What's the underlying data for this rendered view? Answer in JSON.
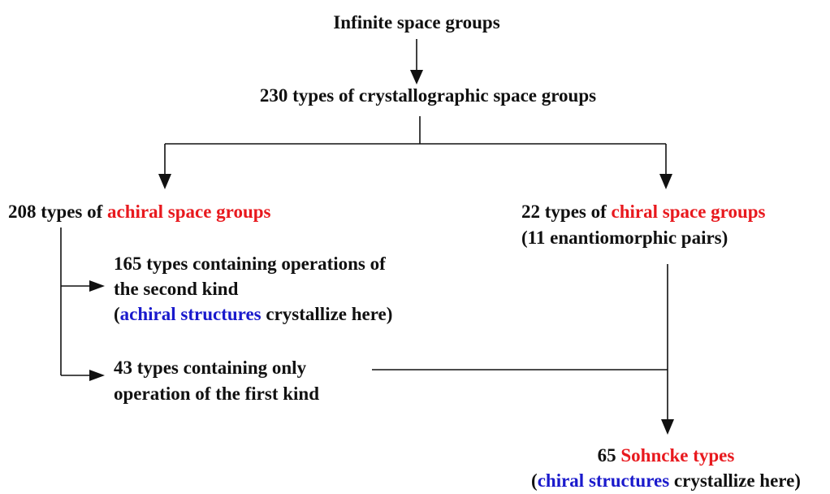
{
  "nodes": [
    {
      "lines": [
        [
          {
            "text": "Infinite space groups"
          }
        ]
      ]
    },
    {
      "lines": [
        [
          {
            "text": "230 types of crystallographic space groups"
          }
        ]
      ]
    },
    {
      "lines": [
        [
          {
            "text": "208 types of "
          },
          {
            "text": "achiral space groups",
            "color": "#e8191e"
          }
        ]
      ]
    },
    {
      "lines": [
        [
          {
            "text": "22 types of "
          },
          {
            "text": "chiral space groups",
            "color": "#e8191e"
          }
        ],
        [
          {
            "text": "(11 enantiomorphic pairs)"
          }
        ]
      ]
    },
    {
      "lines": [
        [
          {
            "text": "165 types containing operations of"
          }
        ],
        [
          {
            "text": "the second kind"
          }
        ],
        [
          {
            "text": "("
          },
          {
            "text": "achiral structures",
            "color": "#1a1acc"
          },
          {
            "text": " crystallize here)"
          }
        ]
      ]
    },
    {
      "lines": [
        [
          {
            "text": "43 types containing only"
          }
        ],
        [
          {
            "text": "operation of the first kind"
          }
        ]
      ]
    },
    {
      "lines": [
        [
          {
            "text": "65 "
          },
          {
            "text": "Sohncke types",
            "color": "#e8191e"
          }
        ],
        [
          {
            "text": "("
          },
          {
            "text": "chiral structures",
            "color": "#1a1acc"
          },
          {
            "text": " crystallize here)"
          }
        ]
      ]
    }
  ]
}
